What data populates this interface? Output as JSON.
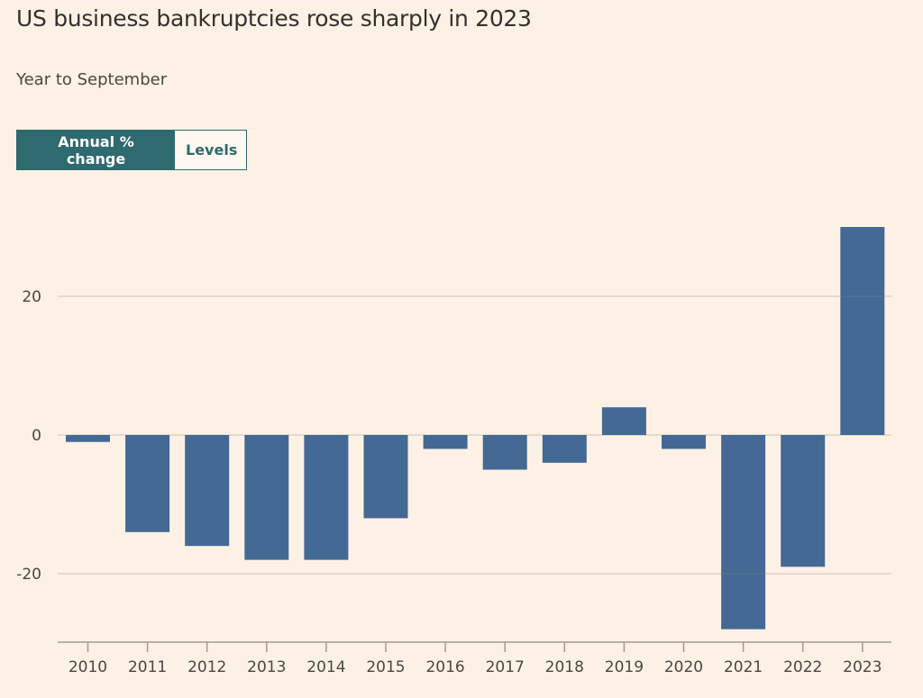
{
  "header": {
    "title": "US business bankruptcies rose sharply in 2023",
    "subtitle": "Year to September"
  },
  "toggle": {
    "options": [
      {
        "label": "Annual % change",
        "active": true
      },
      {
        "label": "Levels",
        "active": false
      }
    ]
  },
  "colors": {
    "background": "#fdf1e5",
    "bar": "#3d6491",
    "toggle_active": "#2e6a6f",
    "gridline": "#dcd2c7",
    "axis": "#a09a95"
  },
  "chart_data": {
    "type": "bar",
    "title": "US business bankruptcies rose sharply in 2023",
    "subtitle": "Year to September",
    "xlabel": "",
    "ylabel": "Annual % change",
    "categories": [
      "2010",
      "2011",
      "2012",
      "2013",
      "2014",
      "2015",
      "2016",
      "2017",
      "2018",
      "2019",
      "2020",
      "2021",
      "2022",
      "2023"
    ],
    "values": [
      -1,
      -14,
      -16,
      -18,
      -18,
      -12,
      -2,
      -5,
      -4,
      4,
      -2,
      -28,
      -19,
      30
    ],
    "yticks": [
      -20,
      0,
      20
    ],
    "ytick_labels": [
      "-20",
      "0",
      "20"
    ],
    "ylim": [
      -30,
      32
    ],
    "grid": true,
    "legend": null
  }
}
